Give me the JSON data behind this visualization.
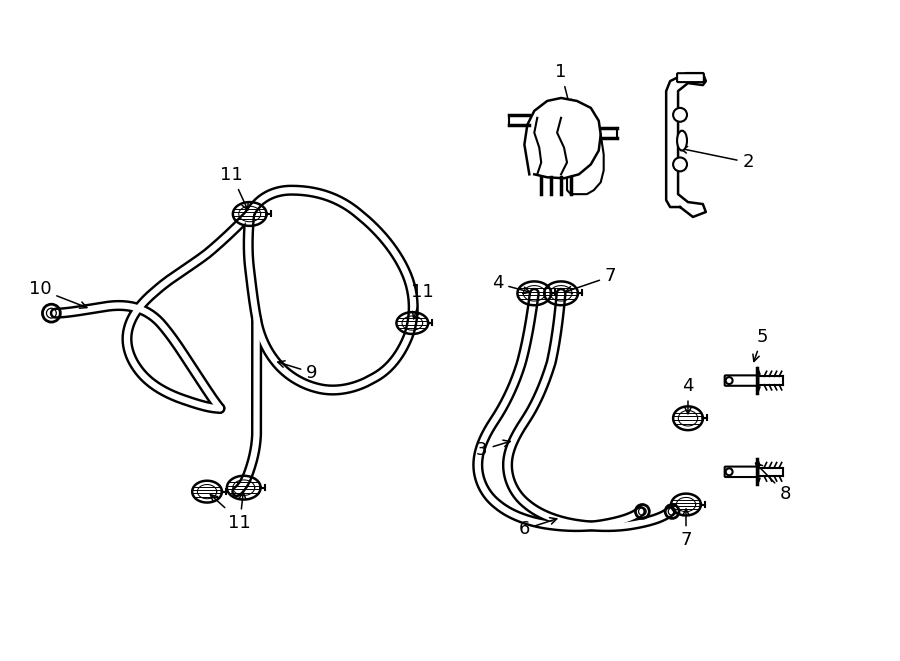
{
  "background": "#ffffff",
  "line_color": "#000000",
  "lw_thin": 1.5,
  "lw_hose": 8.0,
  "lw_hose_white": 4.5,
  "fig_width": 9.0,
  "fig_height": 6.61,
  "label_fontsize": 13
}
